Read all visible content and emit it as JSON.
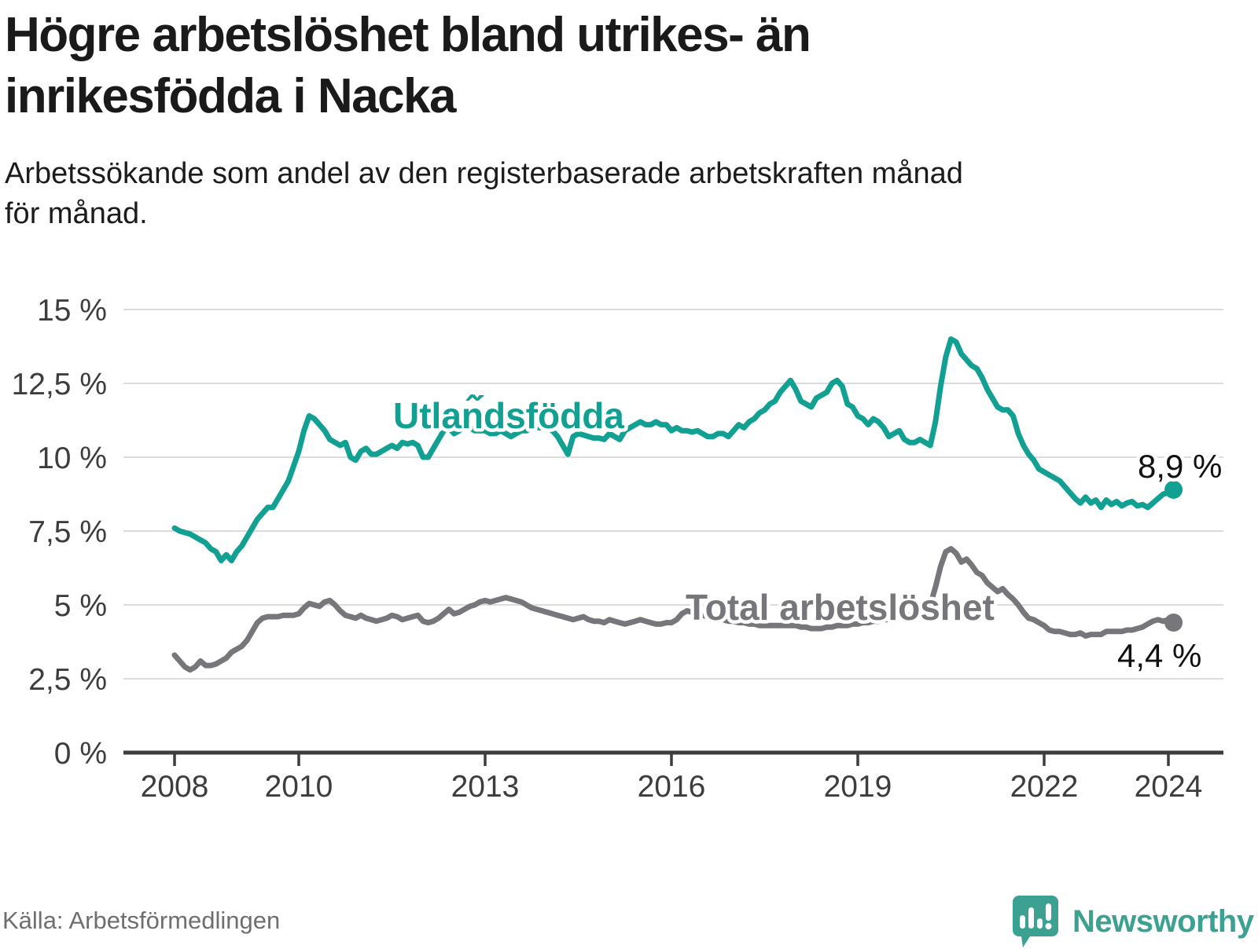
{
  "header": {
    "title": "Högre arbetslöshet bland utrikes- än\ninrikesfödda i Nacka",
    "subtitle": "Arbetssökande som andel av den registerbaserade arbetskraften månad\nför månad."
  },
  "footer": {
    "source": "Källa: Arbetsförmedlingen",
    "brand": "Newsworthy"
  },
  "colors": {
    "accent_teal": "#12a092",
    "series_gray": "#77767b",
    "brand_teal": "#3da191",
    "gridline": "#dcdcdc",
    "axis": "#3d3d3d",
    "end_label_text": "#111111"
  },
  "chart_data": {
    "type": "line",
    "title": "Högre arbetslöshet bland utrikes- än inrikesfödda i Nacka",
    "xlabel": "",
    "ylabel": "Arbetssökande som andel av den registerbaserade arbetskraften",
    "x_start_year": 2008,
    "x_start_month": 1,
    "x_interval": "monthly",
    "x_end_label_year": "2024",
    "ylim": [
      0,
      15
    ],
    "grid": true,
    "yticks": [
      {
        "value": 0,
        "label": "0 %"
      },
      {
        "value": 2.5,
        "label": "2,5 %"
      },
      {
        "value": 5,
        "label": "5 %"
      },
      {
        "value": 7.5,
        "label": "7,5 %"
      },
      {
        "value": 10,
        "label": "10 %"
      },
      {
        "value": 12.5,
        "label": "12,5 %"
      },
      {
        "value": 15,
        "label": "15 %"
      }
    ],
    "xticks": [
      {
        "year": 2008,
        "label": "2008"
      },
      {
        "year": 2010,
        "label": "2010"
      },
      {
        "year": 2013,
        "label": "2013"
      },
      {
        "year": 2016,
        "label": "2016"
      },
      {
        "year": 2019,
        "label": "2019"
      },
      {
        "year": 2022,
        "label": "2022"
      },
      {
        "year": 2024,
        "label": "2024"
      }
    ],
    "series": [
      {
        "id": "utlandsfodda",
        "name": "Utlan̂́dsfödda",
        "color": "#12a092",
        "end_label": "8,9 %",
        "end_value": 8.9,
        "values": [
          7.6,
          7.5,
          7.45,
          7.4,
          7.3,
          7.2,
          7.1,
          6.9,
          6.8,
          6.5,
          6.7,
          6.5,
          6.8,
          7.0,
          7.3,
          7.6,
          7.9,
          8.1,
          8.3,
          8.3,
          8.6,
          8.9,
          9.2,
          9.7,
          10.2,
          10.9,
          11.4,
          11.3,
          11.1,
          10.9,
          10.6,
          10.5,
          10.4,
          10.5,
          10.0,
          9.9,
          10.2,
          10.3,
          10.1,
          10.1,
          10.2,
          10.3,
          10.4,
          10.3,
          10.5,
          10.45,
          10.5,
          10.4,
          10.0,
          10.0,
          10.3,
          10.6,
          10.9,
          11.0,
          10.8,
          10.9,
          11.1,
          11.0,
          10.9,
          10.9,
          10.9,
          10.8,
          10.8,
          10.9,
          10.8,
          10.7,
          10.8,
          10.9,
          10.9,
          11.0,
          11.0,
          11.0,
          11.0,
          10.9,
          10.7,
          10.4,
          10.1,
          10.7,
          10.8,
          10.75,
          10.7,
          10.65,
          10.65,
          10.6,
          10.8,
          10.7,
          10.6,
          10.9,
          11.0,
          11.1,
          11.2,
          11.1,
          11.1,
          11.2,
          11.1,
          11.1,
          10.9,
          11.0,
          10.9,
          10.9,
          10.85,
          10.9,
          10.8,
          10.7,
          10.7,
          10.8,
          10.8,
          10.7,
          10.9,
          11.1,
          11.0,
          11.2,
          11.3,
          11.5,
          11.6,
          11.8,
          11.9,
          12.2,
          12.4,
          12.6,
          12.3,
          11.9,
          11.8,
          11.7,
          12.0,
          12.1,
          12.2,
          12.5,
          12.6,
          12.4,
          11.8,
          11.7,
          11.4,
          11.3,
          11.1,
          11.3,
          11.2,
          11.0,
          10.7,
          10.8,
          10.9,
          10.6,
          10.5,
          10.5,
          10.6,
          10.5,
          10.4,
          11.2,
          12.4,
          13.4,
          14.0,
          13.9,
          13.5,
          13.3,
          13.1,
          13.0,
          12.7,
          12.3,
          12.0,
          11.7,
          11.6,
          11.6,
          11.4,
          10.8,
          10.4,
          10.1,
          9.9,
          9.6,
          9.5,
          9.4,
          9.3,
          9.2,
          9.0,
          8.8,
          8.6,
          8.45,
          8.65,
          8.45,
          8.55,
          8.3,
          8.55,
          8.4,
          8.5,
          8.35,
          8.45,
          8.5,
          8.35,
          8.4,
          8.3,
          8.45,
          8.6,
          8.75,
          8.8,
          8.9
        ]
      },
      {
        "id": "total",
        "name": "Total arbetslöshet",
        "color": "#77767b",
        "end_label": "4,4 %",
        "end_value": 4.4,
        "values": [
          3.3,
          3.1,
          2.9,
          2.8,
          2.9,
          3.1,
          2.95,
          2.95,
          3.0,
          3.1,
          3.2,
          3.4,
          3.5,
          3.6,
          3.8,
          4.1,
          4.4,
          4.55,
          4.6,
          4.6,
          4.6,
          4.65,
          4.65,
          4.65,
          4.7,
          4.9,
          5.05,
          5.0,
          4.95,
          5.1,
          5.15,
          5.0,
          4.8,
          4.65,
          4.6,
          4.55,
          4.65,
          4.55,
          4.5,
          4.45,
          4.5,
          4.55,
          4.65,
          4.6,
          4.5,
          4.55,
          4.6,
          4.65,
          4.45,
          4.4,
          4.45,
          4.55,
          4.7,
          4.85,
          4.7,
          4.75,
          4.85,
          4.95,
          5.0,
          5.1,
          5.15,
          5.1,
          5.15,
          5.2,
          5.25,
          5.2,
          5.15,
          5.1,
          5.0,
          4.9,
          4.85,
          4.8,
          4.75,
          4.7,
          4.65,
          4.6,
          4.55,
          4.5,
          4.55,
          4.6,
          4.5,
          4.45,
          4.45,
          4.4,
          4.5,
          4.45,
          4.4,
          4.35,
          4.4,
          4.45,
          4.5,
          4.45,
          4.4,
          4.35,
          4.35,
          4.4,
          4.4,
          4.5,
          4.7,
          4.8,
          4.75,
          4.7,
          4.65,
          4.6,
          4.55,
          4.5,
          4.5,
          4.45,
          4.45,
          4.4,
          4.4,
          4.35,
          4.35,
          4.3,
          4.3,
          4.3,
          4.3,
          4.3,
          4.3,
          4.3,
          4.3,
          4.25,
          4.25,
          4.2,
          4.2,
          4.2,
          4.25,
          4.25,
          4.3,
          4.3,
          4.3,
          4.35,
          4.35,
          4.4,
          4.4,
          4.45,
          4.45,
          4.5,
          4.5,
          4.55,
          4.6,
          4.6,
          4.65,
          4.7,
          4.75,
          4.8,
          5.0,
          5.6,
          6.3,
          6.8,
          6.9,
          6.75,
          6.45,
          6.55,
          6.35,
          6.1,
          6.0,
          5.75,
          5.6,
          5.45,
          5.55,
          5.35,
          5.2,
          5.0,
          4.75,
          4.55,
          4.5,
          4.4,
          4.3,
          4.15,
          4.1,
          4.1,
          4.05,
          4.0,
          4.0,
          4.05,
          3.95,
          4.0,
          4.0,
          4.0,
          4.1,
          4.1,
          4.1,
          4.1,
          4.15,
          4.15,
          4.2,
          4.25,
          4.35,
          4.45,
          4.5,
          4.45,
          4.5,
          4.4
        ]
      }
    ],
    "legend_position": "inline-labels"
  }
}
